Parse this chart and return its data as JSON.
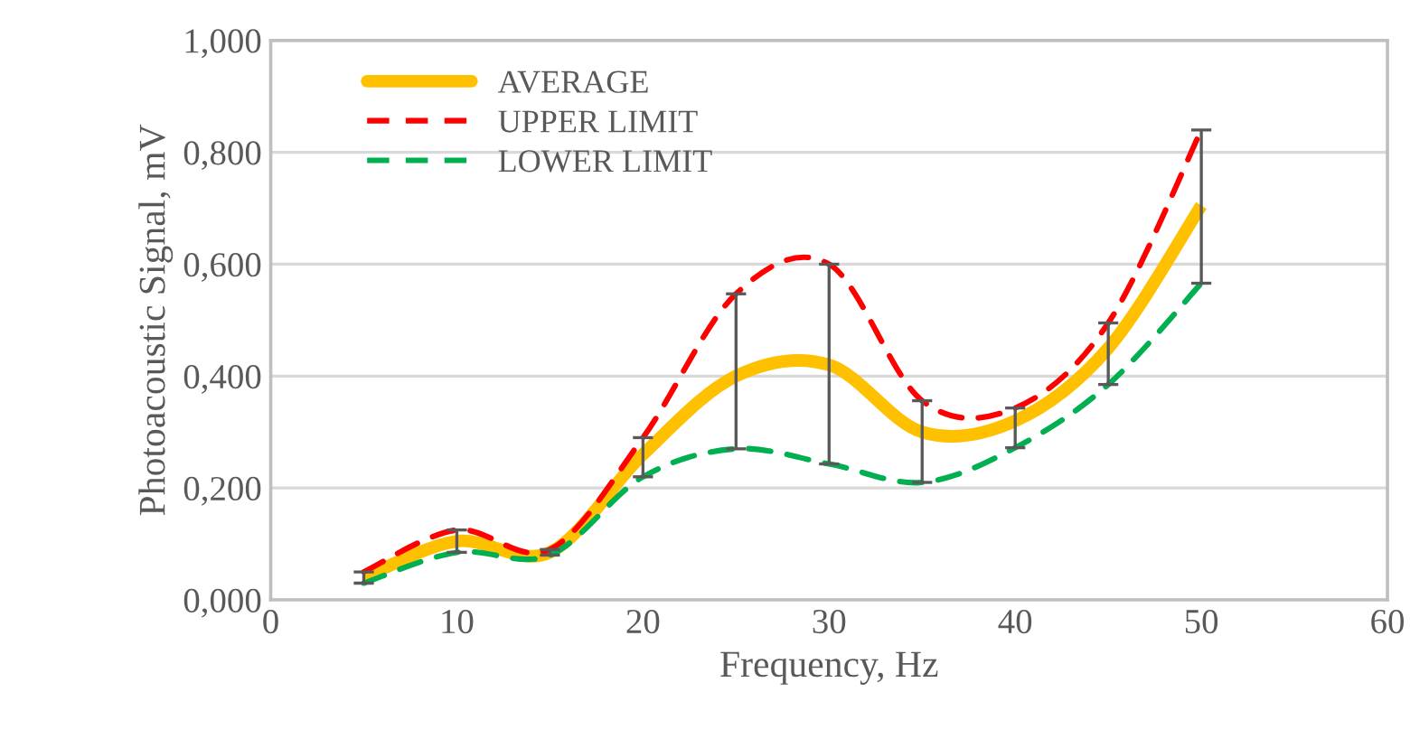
{
  "chart_data": {
    "type": "line",
    "xlabel": "Frequency, Hz",
    "ylabel": "Photoacoustic Signal, mV",
    "x": [
      5,
      10,
      15,
      20,
      25,
      30,
      35,
      40,
      45,
      50
    ],
    "series": [
      {
        "name": "AVERAGE",
        "color": "#ffc000",
        "values": [
          0.04,
          0.105,
          0.085,
          0.26,
          0.4,
          0.42,
          0.3,
          0.32,
          0.45,
          0.705
        ],
        "line_style": "solid",
        "errors": [
          [
            0.03,
            0.05
          ],
          [
            0.085,
            0.125
          ],
          [
            0.08,
            0.09
          ],
          [
            0.22,
            0.29
          ],
          [
            0.27,
            0.547
          ],
          [
            0.243,
            0.6
          ],
          [
            0.21,
            0.356
          ],
          [
            0.272,
            0.343
          ],
          [
            0.385,
            0.495
          ],
          [
            0.566,
            0.84
          ]
        ]
      },
      {
        "name": "UPPER LIMIT",
        "color": "#ff0000",
        "values": [
          0.05,
          0.125,
          0.09,
          0.29,
          0.547,
          0.6,
          0.356,
          0.343,
          0.495,
          0.84
        ],
        "line_style": "dashed"
      },
      {
        "name": "LOWER LIMIT",
        "color": "#00b050",
        "values": [
          0.03,
          0.085,
          0.08,
          0.22,
          0.27,
          0.243,
          0.21,
          0.272,
          0.385,
          0.566
        ],
        "line_style": "dashed"
      }
    ],
    "xlim": [
      0,
      60
    ],
    "xticks": [
      0,
      10,
      20,
      30,
      40,
      50,
      60
    ],
    "ylim": [
      0,
      1.0
    ],
    "yticks": [
      {
        "value": 0,
        "label": "0,000"
      },
      {
        "value": 0.2,
        "label": "0,200"
      },
      {
        "value": 0.4,
        "label": "0,400"
      },
      {
        "value": 0.6,
        "label": "0,600"
      },
      {
        "value": 0.8,
        "label": "0,800"
      },
      {
        "value": 1.0,
        "label": "1,000"
      }
    ],
    "grid": "y",
    "legend": "top left",
    "marker": "none"
  }
}
